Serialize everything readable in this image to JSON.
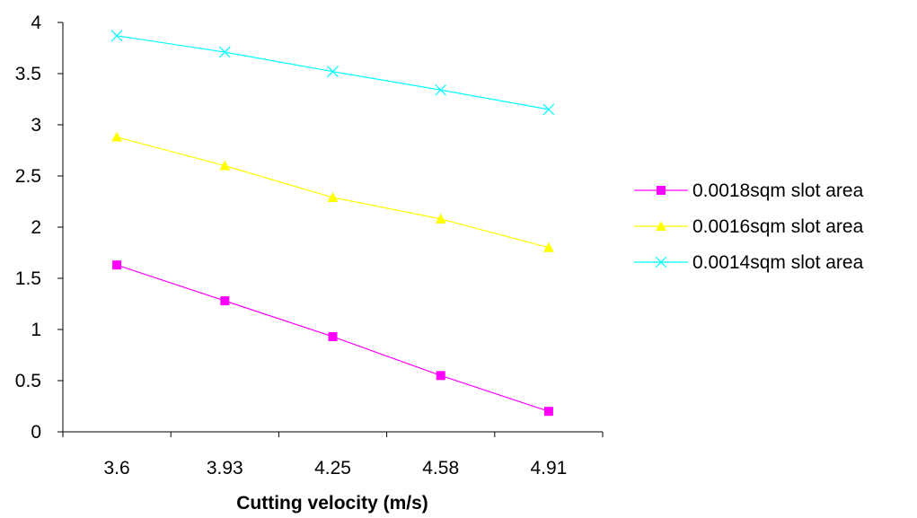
{
  "chart_data": {
    "type": "line",
    "title": "",
    "xlabel": "Cutting velocity (m/s)",
    "ylabel": "",
    "categories": [
      "3.6",
      "3.93",
      "4.25",
      "4.58",
      "4.91"
    ],
    "ylim": [
      0,
      4
    ],
    "yticks": [
      "0",
      "0.5",
      "1",
      "1.5",
      "2",
      "2.5",
      "3",
      "3.5",
      "4"
    ],
    "grid": false,
    "legend_position": "right",
    "series": [
      {
        "name": "0.0018sqm  slot area",
        "values": [
          1.63,
          1.28,
          0.93,
          0.55,
          0.2
        ],
        "color": "#FF00FF",
        "marker": "square"
      },
      {
        "name": "0.0016sqm  slot area",
        "values": [
          2.88,
          2.6,
          2.29,
          2.08,
          1.8
        ],
        "color": "#FFFF00",
        "marker": "triangle"
      },
      {
        "name": "0.0014sqm  slot area",
        "values": [
          3.87,
          3.71,
          3.52,
          3.34,
          3.15
        ],
        "color": "#00FFFF",
        "marker": "x"
      }
    ]
  }
}
